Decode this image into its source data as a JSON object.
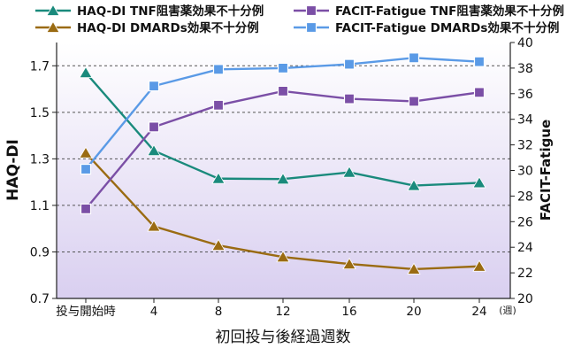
{
  "chart_data": {
    "type": "line",
    "x_labels": [
      "投与開始時",
      "4",
      "8",
      "12",
      "16",
      "20",
      "24"
    ],
    "x_unit": "(週)",
    "xlabel": "初回投与後経過週数",
    "ylabel_left": "HAQ-DI",
    "ylabel_right": "FACIT-Fatigue",
    "ylim_left": [
      0.7,
      1.8
    ],
    "yticks_left": [
      "0.7",
      "0.9",
      "1.1",
      "1.3",
      "1.5",
      "1.7"
    ],
    "ylim_right": [
      20,
      40
    ],
    "yticks_right": [
      "20",
      "22",
      "24",
      "26",
      "28",
      "30",
      "32",
      "34",
      "36",
      "38",
      "40"
    ],
    "grid": true,
    "legend_position": "top",
    "series": [
      {
        "name": "HAQ-DI TNF阻害薬効果不十分例",
        "axis": "left",
        "marker": "triangle",
        "color": "#1a8a7c",
        "values": [
          1.67,
          1.335,
          1.215,
          1.213,
          1.242,
          1.185,
          1.197
        ]
      },
      {
        "name": "HAQ-DI DMARDs効果不十分例",
        "axis": "left",
        "marker": "triangle",
        "color": "#9a6b12",
        "values": [
          1.325,
          1.01,
          0.928,
          0.878,
          0.848,
          0.826,
          0.838
        ]
      },
      {
        "name": "FACIT-Fatigue TNF阻害薬効果不十分例",
        "axis": "right",
        "marker": "square",
        "color": "#7b4fa6",
        "values": [
          27.0,
          33.4,
          35.1,
          36.2,
          35.6,
          35.4,
          36.1
        ]
      },
      {
        "name": "FACIT-Fatigue DMARDs効果不十分例",
        "axis": "right",
        "marker": "square",
        "color": "#5a9ae6",
        "values": [
          30.1,
          36.6,
          37.9,
          38.0,
          38.3,
          38.8,
          38.5
        ]
      }
    ]
  }
}
